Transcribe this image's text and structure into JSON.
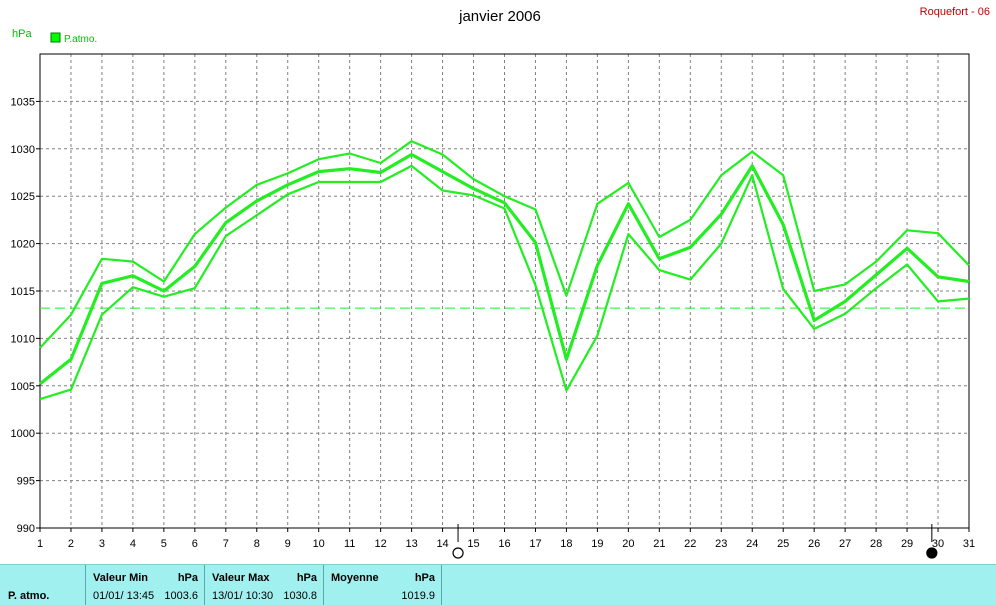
{
  "chart_data": {
    "type": "line",
    "title": "janvier 2006",
    "station": "Roquefort - 06",
    "unit": "hPa",
    "legend": "P.atmo.",
    "legend_color": "#00ff00",
    "line_color": "#22ee22",
    "mean_line_color": "#22ee22",
    "x": [
      1,
      2,
      3,
      4,
      5,
      6,
      7,
      8,
      9,
      10,
      11,
      12,
      13,
      14,
      15,
      16,
      17,
      18,
      19,
      20,
      21,
      22,
      23,
      24,
      25,
      26,
      27,
      28,
      29,
      30,
      31
    ],
    "ylim": [
      990,
      1040
    ],
    "yticks": [
      990,
      995,
      1000,
      1005,
      1010,
      1015,
      1020,
      1025,
      1030,
      1035
    ],
    "grid": true,
    "series": [
      {
        "role": "max",
        "values": [
          1009.0,
          1012.5,
          1018.4,
          1018.1,
          1016.0,
          1021.0,
          1023.8,
          1026.2,
          1027.4,
          1028.9,
          1029.5,
          1028.5,
          1030.8,
          1029.4,
          1026.8,
          1025.0,
          1023.6,
          1014.5,
          1024.2,
          1026.4,
          1020.7,
          1022.5,
          1027.2,
          1029.7,
          1027.2,
          1015.0,
          1015.7,
          1018.1,
          1021.4,
          1021.1,
          1017.7
        ]
      },
      {
        "role": "avg",
        "values": [
          1005.2,
          1007.8,
          1015.8,
          1016.6,
          1015.0,
          1017.6,
          1022.2,
          1024.5,
          1026.2,
          1027.6,
          1027.9,
          1027.5,
          1029.4,
          1027.6,
          1025.8,
          1024.3,
          1020.1,
          1007.8,
          1017.7,
          1024.2,
          1018.4,
          1019.6,
          1023.1,
          1028.2,
          1022.0,
          1011.9,
          1013.9,
          1016.7,
          1019.5,
          1016.5,
          1016.0
        ]
      },
      {
        "role": "min",
        "values": [
          1003.6,
          1004.6,
          1012.5,
          1015.4,
          1014.4,
          1015.3,
          1020.8,
          1023.0,
          1025.2,
          1026.5,
          1026.5,
          1026.5,
          1028.2,
          1025.6,
          1025.1,
          1023.7,
          1015.6,
          1004.5,
          1010.3,
          1021.0,
          1017.2,
          1016.2,
          1020.0,
          1027.2,
          1015.2,
          1011.0,
          1012.6,
          1015.3,
          1017.8,
          1013.9,
          1014.2
        ]
      }
    ],
    "mean_line": 1013.2,
    "moon_phases": [
      {
        "day": 14.5,
        "phase": "full"
      },
      {
        "day": 29.8,
        "phase": "new"
      }
    ]
  },
  "stats": {
    "row_label": "P. atmo.",
    "min_label": "Valeur Min",
    "min_unit": "hPa",
    "min_when": "01/01/  13:45",
    "min_value": "1003.6",
    "max_label": "Valeur Max",
    "max_unit": "hPa",
    "max_when": "13/01/  10:30",
    "max_value": "1030.8",
    "avg_label": "Moyenne",
    "avg_unit": "hPa",
    "avg_value": "1019.9"
  }
}
